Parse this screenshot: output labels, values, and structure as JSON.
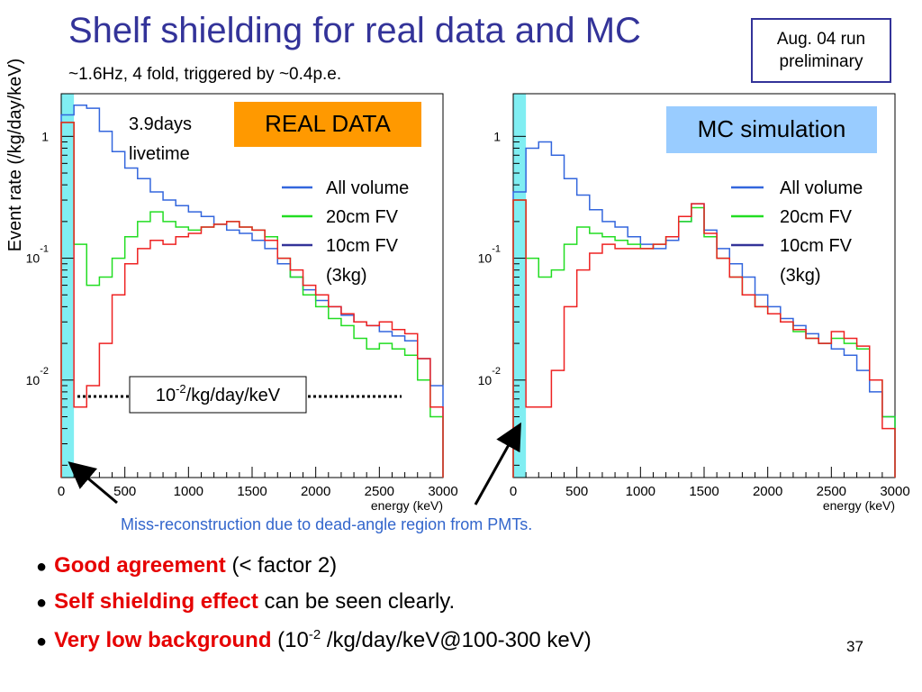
{
  "slide": {
    "title": "Shelf shielding for real data and MC",
    "subtitle": "~1.6Hz, 4 fold, triggered by ~0.4p.e.",
    "badge_line1": "Aug. 04 run",
    "badge_line2": "preliminary",
    "ylabel": "Event rate (/kg/day/keV)",
    "miss_note": "Miss-reconstruction due to dead-angle region from PMTs.",
    "page_number": "37",
    "bullets": [
      {
        "bold": "Good agreement",
        "rest": " (< factor 2)"
      },
      {
        "bold": "Self shielding effect",
        "rest": " can be seen clearly."
      },
      {
        "bold": "Very low background",
        "rest_pre": " (10",
        "sup": "-2",
        "rest_post": " /kg/day/keV@100-300 keV)"
      }
    ]
  },
  "colors": {
    "title": "#333399",
    "all_volume": "#3366dd",
    "fv20": "#22dd22",
    "fv10": "#333399",
    "real_data_10cm_line": "#ee2222",
    "highlight_band": "#80eef2",
    "real_box": "#ff9900",
    "mc_box": "#99ccff",
    "emphasis": "#e60000",
    "note": "#3366cc"
  },
  "chart_data": [
    {
      "type": "line",
      "panel": "real",
      "box_label": "REAL DATA",
      "livetime_line1": "3.9days",
      "livetime_line2": "livetime",
      "reference_label": {
        "base": "10",
        "exp": "-2",
        "unit": "/kg/day/keV"
      },
      "reference_value": 0.01,
      "xlabel": "energy (keV)",
      "xlim": [
        0,
        3000
      ],
      "ylim_log10": [
        -2.8,
        0.35
      ],
      "log_y": true,
      "xticks": [
        "0",
        "500",
        "1000",
        "1500",
        "2000",
        "2500",
        "3000"
      ],
      "yticks": [
        {
          "base": "1",
          "exp": ""
        },
        {
          "base": "10",
          "exp": "-1"
        },
        {
          "base": "10",
          "exp": "-2"
        }
      ],
      "legend": [
        {
          "label": "All volume"
        },
        {
          "label": "20cm FV"
        },
        {
          "label": "10cm FV",
          "sub": "(3kg)"
        }
      ],
      "x": [
        0,
        100,
        200,
        300,
        400,
        500,
        600,
        700,
        800,
        900,
        1000,
        1100,
        1200,
        1300,
        1400,
        1500,
        1600,
        1700,
        1800,
        1900,
        2000,
        2100,
        2200,
        2300,
        2400,
        2500,
        2600,
        2700,
        2800,
        2900,
        3000
      ],
      "series": [
        {
          "name": "All volume",
          "values": [
            1.5,
            1.8,
            1.7,
            1.1,
            0.75,
            0.55,
            0.45,
            0.35,
            0.3,
            0.27,
            0.24,
            0.22,
            0.19,
            0.17,
            0.16,
            0.14,
            0.12,
            0.09,
            0.07,
            0.055,
            0.045,
            0.04,
            0.034,
            0.03,
            0.028,
            0.025,
            0.023,
            0.021,
            0.015,
            0.009,
            0.0085
          ]
        },
        {
          "name": "20cm FV",
          "values": [
            1.3,
            0.13,
            0.06,
            0.07,
            0.1,
            0.15,
            0.2,
            0.24,
            0.2,
            0.18,
            0.17,
            0.18,
            0.19,
            0.2,
            0.18,
            0.17,
            0.15,
            0.1,
            0.07,
            0.05,
            0.04,
            0.032,
            0.028,
            0.022,
            0.018,
            0.02,
            0.018,
            0.016,
            0.01,
            0.005,
            0.0035
          ]
        },
        {
          "name": "10cm FV",
          "values": [
            1.3,
            0.006,
            0.009,
            0.02,
            0.05,
            0.09,
            0.12,
            0.14,
            0.13,
            0.15,
            0.16,
            0.18,
            0.19,
            0.2,
            0.18,
            0.17,
            0.14,
            0.1,
            0.08,
            0.06,
            0.05,
            0.04,
            0.035,
            0.03,
            0.028,
            0.03,
            0.026,
            0.024,
            0.015,
            0.006,
            0.004
          ]
        }
      ]
    },
    {
      "type": "line",
      "panel": "mc",
      "box_label": "MC simulation",
      "xlabel": "energy (keV)",
      "xlim": [
        0,
        3000
      ],
      "ylim_log10": [
        -2.8,
        0.35
      ],
      "log_y": true,
      "xticks": [
        "0",
        "500",
        "1000",
        "1500",
        "2000",
        "2500",
        "3000"
      ],
      "yticks": [
        {
          "base": "1",
          "exp": ""
        },
        {
          "base": "10",
          "exp": "-1"
        },
        {
          "base": "10",
          "exp": "-2"
        }
      ],
      "legend": [
        {
          "label": "All volume"
        },
        {
          "label": "20cm FV"
        },
        {
          "label": "10cm FV",
          "sub": "(3kg)"
        }
      ],
      "x": [
        0,
        100,
        200,
        300,
        400,
        500,
        600,
        700,
        800,
        900,
        1000,
        1100,
        1200,
        1300,
        1400,
        1500,
        1600,
        1700,
        1800,
        1900,
        2000,
        2100,
        2200,
        2300,
        2400,
        2500,
        2600,
        2700,
        2800,
        2900,
        3000
      ],
      "series": [
        {
          "name": "All volume",
          "values": [
            0.35,
            0.8,
            0.9,
            0.7,
            0.45,
            0.33,
            0.25,
            0.2,
            0.18,
            0.15,
            0.13,
            0.12,
            0.14,
            0.2,
            0.28,
            0.17,
            0.12,
            0.09,
            0.07,
            0.05,
            0.04,
            0.032,
            0.028,
            0.024,
            0.02,
            0.018,
            0.016,
            0.012,
            0.008,
            0.005,
            0.004
          ]
        },
        {
          "name": "20cm FV",
          "values": [
            0.3,
            0.1,
            0.07,
            0.08,
            0.13,
            0.18,
            0.16,
            0.15,
            0.14,
            0.13,
            0.12,
            0.13,
            0.15,
            0.2,
            0.26,
            0.15,
            0.1,
            0.07,
            0.05,
            0.04,
            0.035,
            0.03,
            0.025,
            0.022,
            0.02,
            0.022,
            0.02,
            0.018,
            0.01,
            0.005,
            0.003
          ]
        },
        {
          "name": "10cm FV",
          "values": [
            0.3,
            0.006,
            0.006,
            0.012,
            0.04,
            0.08,
            0.11,
            0.13,
            0.12,
            0.12,
            0.12,
            0.13,
            0.15,
            0.22,
            0.28,
            0.16,
            0.1,
            0.07,
            0.05,
            0.04,
            0.035,
            0.03,
            0.026,
            0.022,
            0.02,
            0.025,
            0.022,
            0.019,
            0.01,
            0.004,
            0.003
          ]
        }
      ]
    }
  ]
}
